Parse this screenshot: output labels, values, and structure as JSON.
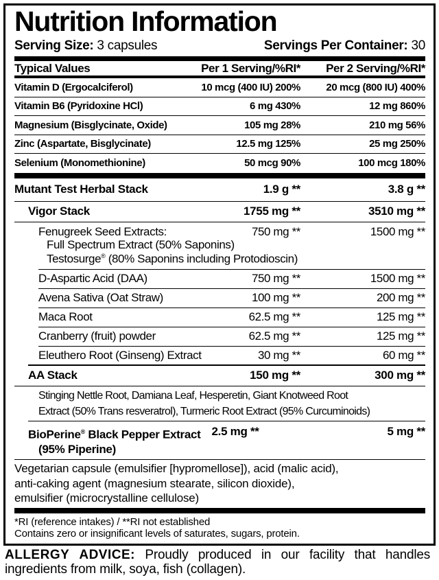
{
  "title": "Nutrition Information",
  "serving": {
    "size_label": "Serving Size:",
    "size_value": "3 capsules",
    "per_container_label": "Servings Per Container:",
    "per_container_value": "30"
  },
  "headers": {
    "name": "Typical Values",
    "col1": "Per 1 Serving/%RI*",
    "col2": "Per 2 Serving/%RI*"
  },
  "vitamins": [
    {
      "name": "Vitamin D (Ergocalciferol)",
      "v1": "10 mcg (400 IU) 200%",
      "v2": "20 mcg (800 IU) 400%"
    },
    {
      "name": "Vitamin B6 (Pyridoxine HCl)",
      "v1": "6 mg 430%",
      "v2": "12 mg 860%"
    },
    {
      "name": "Magnesium (Bisglycinate, Oxide)",
      "v1": "105 mg 28%",
      "v2": "210 mg 56%"
    },
    {
      "name": "Zinc (Aspartate, Bisglycinate)",
      "v1": "12.5 mg 125%",
      "v2": "25 mg 250%"
    },
    {
      "name": "Selenium (Monomethionine)",
      "v1": "50 mcg 90%",
      "v2": "100 mcg 180%"
    }
  ],
  "herbal": {
    "name": "Mutant Test Herbal Stack",
    "v1": "1.9 g **",
    "v2": "3.8 g **"
  },
  "vigor": {
    "name": "Vigor Stack",
    "v1": "1755 mg **",
    "v2": "3510 mg **",
    "fenugreek": {
      "name": "Fenugreek Seed Extracts:",
      "sub1": "Full Spectrum Extract (50% Saponins)",
      "sub2_brand": "Testosurge",
      "sub2_mark": "®",
      "sub2_rest": " (80% Saponins including Protodioscin)",
      "v1": "750 mg **",
      "v2": "1500 mg **"
    },
    "items": [
      {
        "name": "D-Aspartic Acid (DAA)",
        "v1": "750 mg **",
        "v2": "1500 mg **"
      },
      {
        "name": "Avena Sativa (Oat Straw)",
        "v1": "100 mg **",
        "v2": "200 mg **"
      },
      {
        "name": "Maca Root",
        "v1": "62.5 mg **",
        "v2": "125 mg **"
      },
      {
        "name": "Cranberry (fruit) powder",
        "v1": "62.5 mg **",
        "v2": "125 mg **"
      },
      {
        "name": "Eleuthero Root (Ginseng) Extract",
        "v1": "30 mg **",
        "v2": "60 mg **"
      }
    ]
  },
  "aa": {
    "name": "AA Stack",
    "v1": "150 mg **",
    "v2": "300 mg **",
    "line1": "Stinging Nettle Root, Damiana Leaf, Hesperetin, Giant Knotweed Root",
    "line2": "Extract (50% Trans resveratrol), Turmeric Root Extract (95% Curcuminoids)"
  },
  "bioperine": {
    "brand": "BioPerine",
    "mark": "®",
    "rest": " Black Pepper Extract",
    "line2": "(95% Piperine)",
    "v1": "2.5 mg **",
    "v2": "5 mg **"
  },
  "ingredients": [
    "Vegetarian capsule (emulsifier [hypromellose]), acid (malic acid),",
    "anti-caking agent (magnesium stearate, silicon dioxide),",
    "emulsifier (microcrystalline cellulose)"
  ],
  "footnotes": [
    "*RI (reference intakes) / **RI not established",
    "Contains zero or insignificant levels of saturates, sugars, protein."
  ],
  "allergy": {
    "label": "ALLERGY ADVICE:",
    "text": " Proudly produced in our facility that handles ingredients from milk, soya, fish (collagen)."
  }
}
